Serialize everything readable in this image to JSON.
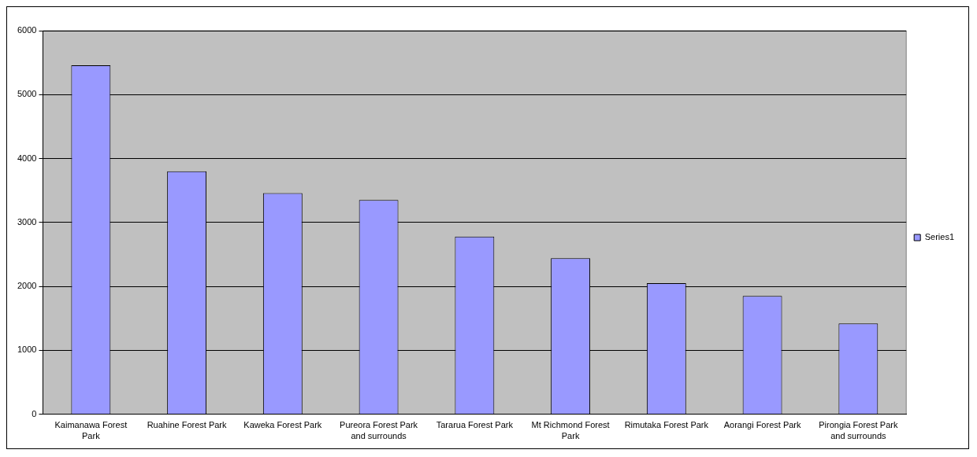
{
  "chart_data": {
    "type": "bar",
    "categories": [
      "Kaimanawa Forest Park",
      "Ruahine Forest Park",
      "Kaweka Forest Park",
      "Pureora Forest Park and surrounds",
      "Tararua Forest Park",
      "Mt Richmond Forest Park",
      "Rimutaka Forest Park",
      "Aorangi Forest Park",
      "Pirongia Forest Park and surrounds"
    ],
    "series": [
      {
        "name": "Series1",
        "color": "#9999ff",
        "values": [
          5460,
          3800,
          3460,
          3350,
          2780,
          2440,
          2050,
          1850,
          1420
        ]
      }
    ],
    "ylim": [
      0,
      6000
    ],
    "yticks": [
      0,
      1000,
      2000,
      3000,
      4000,
      5000,
      6000
    ],
    "grid": "y",
    "legend": "right"
  }
}
